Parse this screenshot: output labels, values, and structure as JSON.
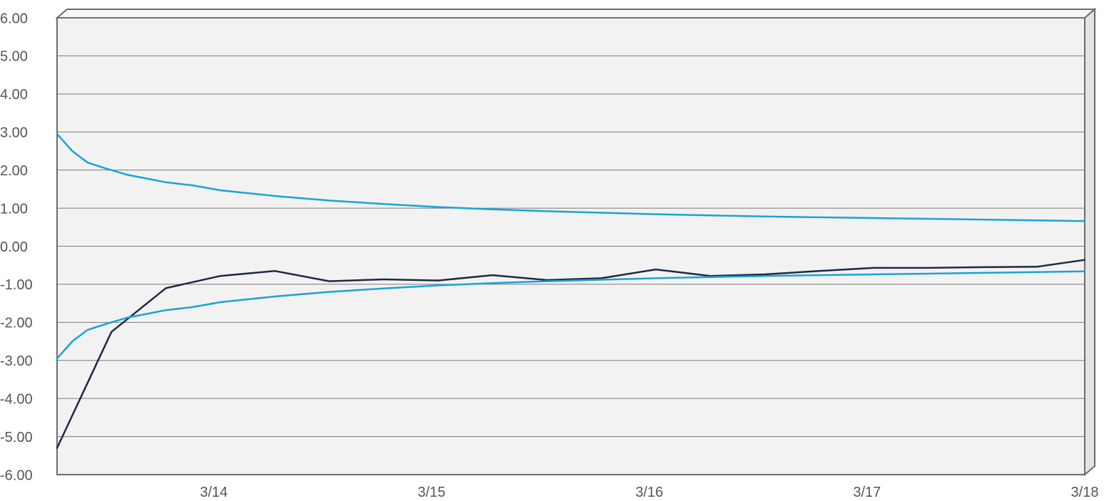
{
  "chart_data": {
    "type": "line",
    "ylim": [
      -6,
      6
    ],
    "y_ticks": [
      "6.00",
      "5.00",
      "4.00",
      "3.00",
      "2.00",
      "1.00",
      "0.00",
      "-1.00",
      "-2.00",
      "-3.00",
      "-4.00",
      "-5.00",
      "-6.00"
    ],
    "y_tick_values": [
      6,
      5,
      4,
      3,
      2,
      1,
      0,
      -1,
      -2,
      -3,
      -4,
      -5,
      -6
    ],
    "x_ticks": [
      "3/14",
      "3/15",
      "3/16",
      "3/17",
      "3/18"
    ],
    "x_tick_values": [
      1.0,
      2.0,
      3.0,
      4.0,
      5.0
    ],
    "xlim": [
      0.28,
      5.0
    ],
    "grid": true,
    "background": "#f2f2f2",
    "series": [
      {
        "color": "#1c2a45",
        "x": [
          0.28,
          0.53,
          0.78,
          1.03,
          1.28,
          1.53,
          1.78,
          2.03,
          2.28,
          2.53,
          2.78,
          3.03,
          3.28,
          3.53,
          3.78,
          4.03,
          4.28,
          4.53,
          4.78,
          5.0
        ],
        "y": [
          -5.3,
          -2.25,
          -1.1,
          -0.78,
          -0.65,
          -0.92,
          -0.87,
          -0.9,
          -0.76,
          -0.89,
          -0.84,
          -0.61,
          -0.78,
          -0.74,
          -0.65,
          -0.57,
          -0.57,
          -0.55,
          -0.54,
          -0.36
        ]
      },
      {
        "color": "#1aa3d6",
        "x": [
          0.28,
          0.35,
          0.42,
          0.5,
          0.53,
          0.6,
          0.7,
          0.78,
          0.9,
          1.03,
          1.28,
          1.53,
          1.78,
          2.03,
          2.28,
          2.53,
          2.78,
          3.03,
          3.28,
          3.53,
          3.78,
          4.03,
          4.28,
          4.53,
          4.78,
          5.0
        ],
        "y": [
          2.95,
          2.5,
          2.2,
          2.05,
          2.0,
          1.88,
          1.77,
          1.68,
          1.6,
          1.47,
          1.32,
          1.2,
          1.11,
          1.03,
          0.97,
          0.92,
          0.88,
          0.84,
          0.81,
          0.78,
          0.76,
          0.74,
          0.72,
          0.7,
          0.68,
          0.66
        ]
      },
      {
        "color": "#1aa3d6",
        "x": [
          0.28,
          0.35,
          0.42,
          0.5,
          0.53,
          0.6,
          0.7,
          0.78,
          0.9,
          1.03,
          1.28,
          1.53,
          1.78,
          2.03,
          2.28,
          2.53,
          2.78,
          3.03,
          3.28,
          3.53,
          3.78,
          4.03,
          4.28,
          4.53,
          4.78,
          5.0
        ],
        "y": [
          -2.95,
          -2.5,
          -2.2,
          -2.05,
          -2.0,
          -1.88,
          -1.77,
          -1.68,
          -1.6,
          -1.47,
          -1.32,
          -1.2,
          -1.11,
          -1.03,
          -0.97,
          -0.92,
          -0.88,
          -0.84,
          -0.81,
          -0.78,
          -0.76,
          -0.74,
          -0.72,
          -0.7,
          -0.68,
          -0.66
        ]
      }
    ]
  }
}
